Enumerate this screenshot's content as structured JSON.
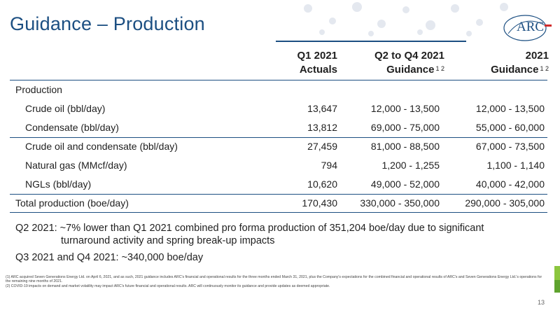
{
  "slide": {
    "title": "Guidance – Production",
    "page_number": "13",
    "logo_text": "ARC"
  },
  "table": {
    "columns": [
      {
        "line1": "Q1 2021",
        "line2": "Actuals",
        "sup": ""
      },
      {
        "line1": "Q2 to Q4 2021",
        "line2": "Guidance",
        "sup": "1 2"
      },
      {
        "line1": "2021",
        "line2": "Guidance",
        "sup": "1 2"
      }
    ],
    "section_label": "Production",
    "rows": [
      {
        "label": "Crude oil (bbl/day)",
        "q1": "13,647",
        "q2q4": "12,000 - 13,500",
        "fy": "12,000 - 13,500"
      },
      {
        "label": "Condensate (bbl/day)",
        "q1": "13,812",
        "q2q4": "69,000 - 75,000",
        "fy": "55,000 - 60,000"
      },
      {
        "label": "Crude oil and condensate (bbl/day)",
        "q1": "27,459",
        "q2q4": "81,000 - 88,500",
        "fy": "67,000 - 73,500"
      },
      {
        "label": "Natural gas (MMcf/day)",
        "q1": "794",
        "q2q4": "1,200 - 1,255",
        "fy": "1,100 - 1,140"
      },
      {
        "label": "NGLs (bbl/day)",
        "q1": "10,620",
        "q2q4": "49,000 - 52,000",
        "fy": "40,000 - 42,000"
      }
    ],
    "total": {
      "label": "Total production (boe/day)",
      "q1": "170,430",
      "q2q4": "330,000 - 350,000",
      "fy": "290,000 - 305,000"
    }
  },
  "notes": {
    "q2_line1": "Q2 2021: ~7% lower than Q1 2021 combined pro forma production of 351,204 boe/day due to significant",
    "q2_line2": "turnaround activity and spring break-up impacts",
    "q3q4": "Q3 2021 and Q4 2021: ~340,000 boe/day"
  },
  "footnotes": {
    "fn1": "(1) ARC acquired Seven Generations Energy Ltd. on April 6, 2021, and as such, 2021 guidance includes ARC's financial and operational results for the three months ended March 31, 2021, plus the Company's expectations for the combined financial and operational results of ARC's and Seven Generations Energy Ltd.'s operations for the remaining nine months of 2021.",
    "fn2": "(2) COVID-19 impacts on demand and market volatility may impact ARC's future financial and operational results. ARC will continuously monitor its guidance and provide updates as deemed appropriate."
  },
  "colors": {
    "title_blue": "#1c4f82",
    "rule_blue": "#1c4f82",
    "accent_red": "#d12b2b",
    "accent_green": "#8cc63f"
  }
}
